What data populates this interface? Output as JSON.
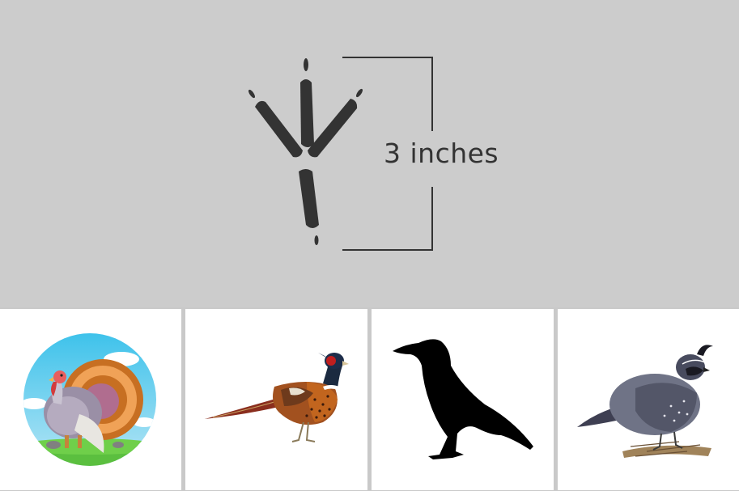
{
  "track": {
    "label": "3 inches",
    "icon": "bird-footprint-icon",
    "color": "#333333",
    "background": "#cccccc"
  },
  "choices": [
    {
      "icon": "turkey-icon",
      "kind": "illustration"
    },
    {
      "icon": "pheasant-icon",
      "kind": "illustration"
    },
    {
      "icon": "crow-silhouette-icon",
      "kind": "silhouette"
    },
    {
      "icon": "quail-icon",
      "kind": "illustration"
    }
  ]
}
